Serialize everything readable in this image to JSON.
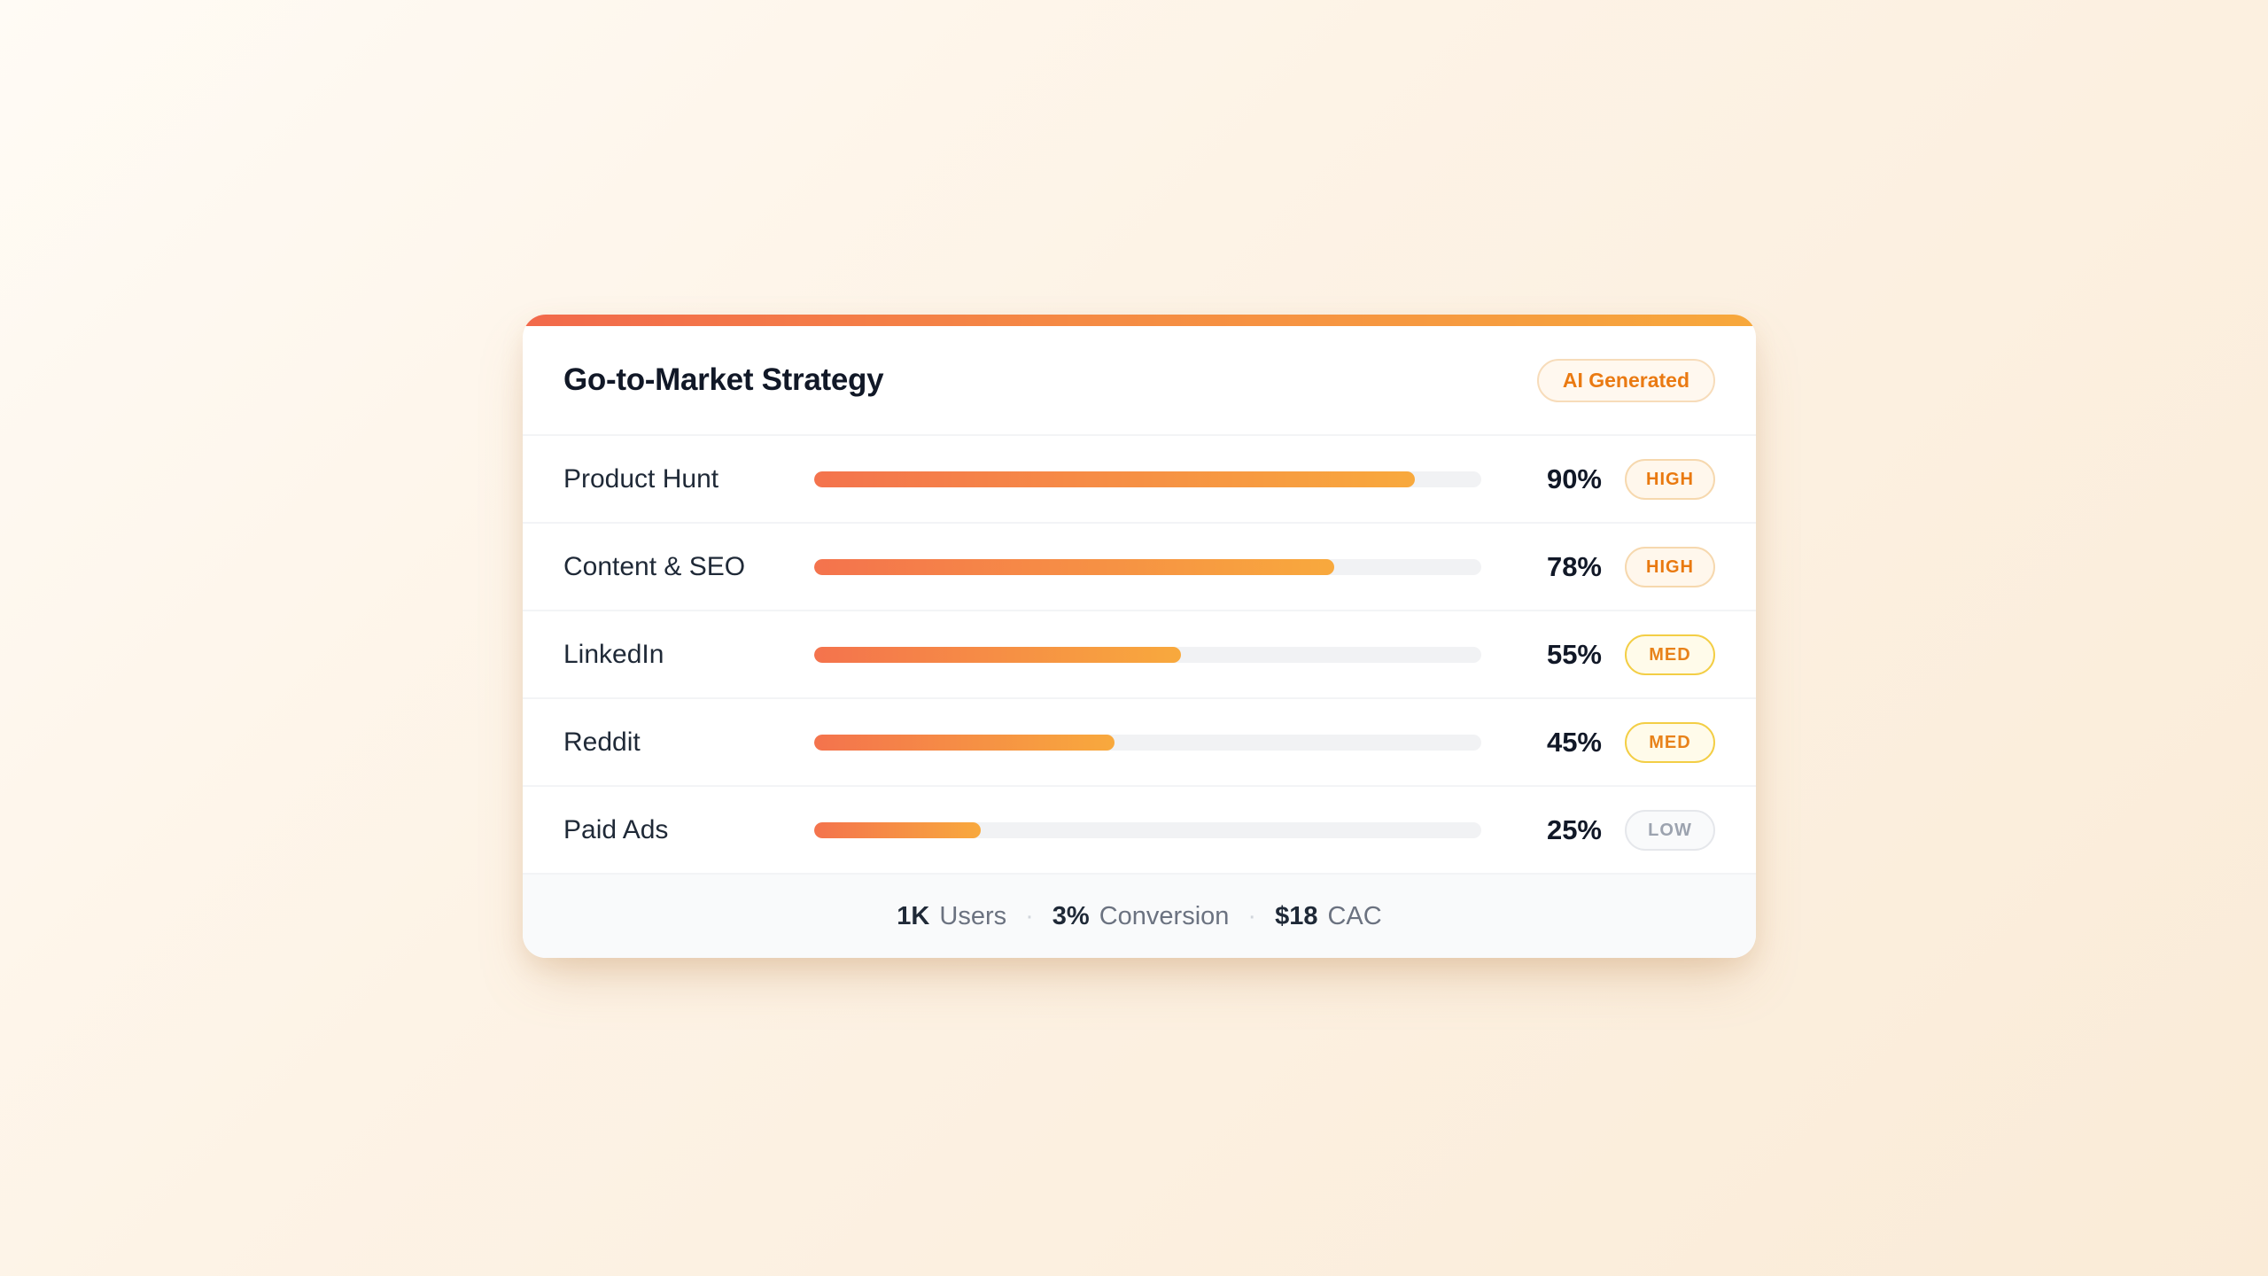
{
  "card": {
    "title": "Go-to-Market Strategy",
    "badge_label": "AI Generated",
    "rows": [
      {
        "label": "Product Hunt",
        "percent": 90,
        "percent_label": "90%",
        "level": "HIGH"
      },
      {
        "label": "Content & SEO",
        "percent": 78,
        "percent_label": "78%",
        "level": "HIGH"
      },
      {
        "label": "LinkedIn",
        "percent": 55,
        "percent_label": "55%",
        "level": "MED"
      },
      {
        "label": "Reddit",
        "percent": 45,
        "percent_label": "45%",
        "level": "MED"
      },
      {
        "label": "Paid Ads",
        "percent": 25,
        "percent_label": "25%",
        "level": "LOW"
      }
    ],
    "footer": {
      "separator": "·",
      "stats": [
        {
          "value": "1K",
          "label": "Users"
        },
        {
          "value": "3%",
          "label": "Conversion"
        },
        {
          "value": "$18",
          "label": "CAC"
        }
      ]
    }
  },
  "colors": {
    "accent_gradient_start": "#F2694B",
    "accent_gradient_end": "#F7A83C",
    "bar_fill_start": "#F4734D",
    "bar_fill_end": "#F8A93D",
    "bar_track": "#F1F2F4",
    "badge_high_text": "#E9790F",
    "badge_med_text": "#E8821A",
    "badge_low_text": "#9CA3AF",
    "title_text": "#111827",
    "footer_bg": "#F9FAFB",
    "page_bg_start": "#FFFBF5",
    "page_bg_end": "#FAEBD7"
  },
  "chart_data": {
    "type": "bar",
    "orientation": "horizontal",
    "title": "Go-to-Market Strategy",
    "categories": [
      "Product Hunt",
      "Content & SEO",
      "LinkedIn",
      "Reddit",
      "Paid Ads"
    ],
    "values": [
      90,
      78,
      55,
      45,
      25
    ],
    "value_unit": "%",
    "xlim": [
      0,
      100
    ],
    "priority_labels": [
      "HIGH",
      "HIGH",
      "MED",
      "MED",
      "LOW"
    ],
    "annotations": [
      "AI Generated"
    ],
    "footer_stats": [
      {
        "value": "1K",
        "label": "Users"
      },
      {
        "value": "3%",
        "label": "Conversion"
      },
      {
        "value": "$18",
        "label": "CAC"
      }
    ],
    "legend": "none",
    "grid": false
  }
}
